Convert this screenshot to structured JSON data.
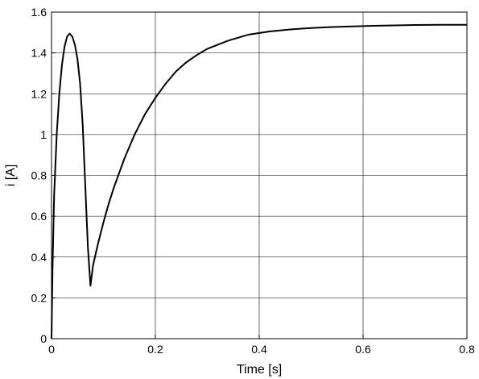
{
  "chart_data": {
    "type": "line",
    "title": "",
    "xlabel": "Time [s]",
    "ylabel": "i [A]",
    "xlim": [
      0,
      0.8
    ],
    "ylim": [
      0,
      1.6
    ],
    "x_ticks": [
      "0",
      "0.2",
      "0.4",
      "0.6",
      "0.8"
    ],
    "y_ticks": [
      "0",
      "0.2",
      "0.4",
      "0.6",
      "0.8",
      "1",
      "1.2",
      "1.4",
      "1.6"
    ],
    "grid": true,
    "line_color": "#000000",
    "series": [
      {
        "x": [
          0,
          0.002,
          0.005,
          0.01,
          0.015,
          0.02,
          0.025,
          0.03,
          0.035,
          0.04,
          0.045,
          0.05,
          0.055,
          0.06,
          0.065,
          0.07,
          0.075,
          0.08,
          0.09,
          0.1,
          0.11,
          0.12,
          0.14,
          0.16,
          0.18,
          0.2,
          0.22,
          0.24,
          0.26,
          0.28,
          0.3,
          0.34,
          0.38,
          0.42,
          0.46,
          0.5,
          0.54,
          0.58,
          0.62,
          0.66,
          0.7,
          0.75,
          0.8
        ],
        "y": [
          0,
          0.35,
          0.7,
          1.0,
          1.2,
          1.34,
          1.43,
          1.48,
          1.495,
          1.48,
          1.44,
          1.37,
          1.25,
          1.05,
          0.75,
          0.45,
          0.26,
          0.36,
          0.47,
          0.57,
          0.66,
          0.74,
          0.88,
          1.0,
          1.1,
          1.18,
          1.25,
          1.31,
          1.355,
          1.39,
          1.42,
          1.46,
          1.49,
          1.505,
          1.515,
          1.522,
          1.527,
          1.53,
          1.533,
          1.535,
          1.537,
          1.538,
          1.538
        ]
      }
    ]
  }
}
